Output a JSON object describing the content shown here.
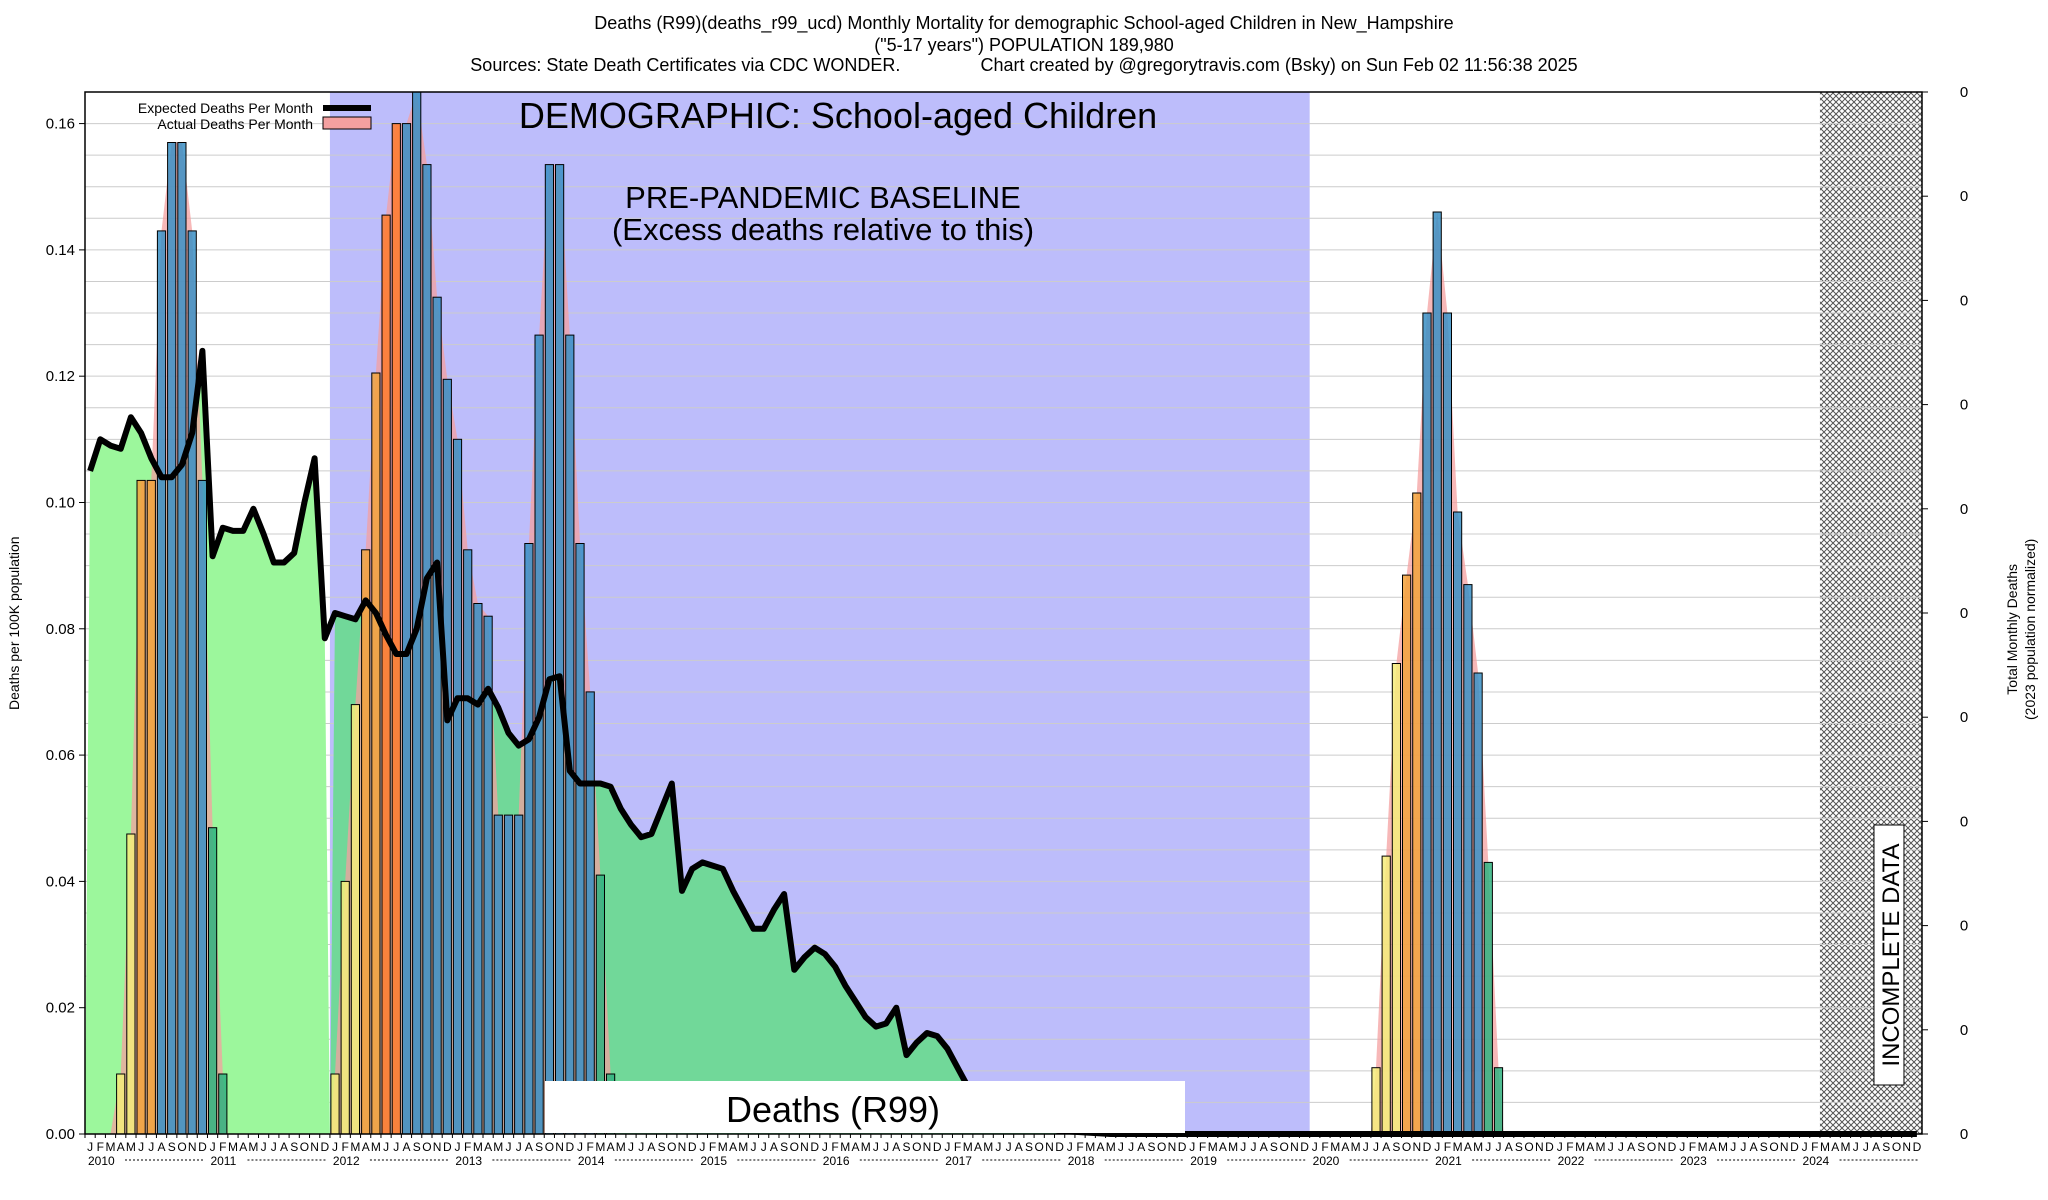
{
  "header": {
    "line1": "Deaths (R99)(deaths_r99_ucd) Monthly Mortality for demographic School-aged Children in New_Hampshire",
    "line2": "(\"5-17 years\") POPULATION 189,980",
    "line3": "Sources: State Death Certificates via CDC WONDER.                Chart created by @gregorytravis.com (Bsky) on Sun Feb 02 11:56:38 2025"
  },
  "chart_data": {
    "type": "bar",
    "ylabel": "Deaths per 100K population",
    "ylabel_right": [
      "Total Monthly Deaths",
      "(2023 population normalized)"
    ],
    "ylim": [
      0,
      0.165
    ],
    "yticks": [
      "0.00",
      "0.02",
      "0.04",
      "0.06",
      "0.08",
      "0.10",
      "0.12",
      "0.14",
      "0.16"
    ],
    "right_ticks": [
      "0",
      "0",
      "0",
      "0",
      "0",
      "0",
      "0",
      "0",
      "0",
      "0",
      "0"
    ],
    "legend": {
      "placement": "top-left",
      "expected": "Expected Deaths Per Month",
      "actual": "Actual Deaths Per Month"
    },
    "annotations": {
      "demographic": "DEMOGRAPHIC: School-aged Children",
      "baseline1": "PRE-PANDEMIC BASELINE",
      "baseline2": "(Excess deaths relative to this)",
      "deaths_box": "Deaths (R99)",
      "incomplete": "INCOMPLETE DATA"
    },
    "years": [
      "2010",
      "2011",
      "2012",
      "2013",
      "2014",
      "2015",
      "2016",
      "2017",
      "2018",
      "2019",
      "2020",
      "2021",
      "2022",
      "2023",
      "2024"
    ],
    "month_letters": [
      "J",
      "F",
      "M",
      "A",
      "M",
      "J",
      "J",
      "A",
      "S",
      "O",
      "N",
      "D"
    ],
    "baseline_start": "2012-01",
    "baseline_end": "2019-12",
    "incomplete_start": "2024-03",
    "actual_series": [
      {
        "start": "2010-01",
        "values": [
          0,
          0,
          0,
          0.0095,
          0.0475,
          0.1035,
          0.1035,
          0.143,
          0.157,
          0.157,
          0.143,
          0.1035,
          0.0485,
          0.0095
        ]
      },
      {
        "start": "2012-01",
        "values": [
          0.0095,
          0.04,
          0.068,
          0.0925,
          0.1205,
          0.1455,
          0.16,
          0.16,
          0.165,
          0.1535,
          0.1325,
          0.1195,
          0.11,
          0.0925,
          0.084,
          0.082,
          0.0505,
          0.0505,
          0.0505,
          0.0935,
          0.1265,
          0.1535,
          0.1535,
          0.1265,
          0.0935,
          0.07,
          0.041,
          0.0095
        ]
      },
      {
        "start": "2020-07",
        "values": [
          0.0105,
          0.044,
          0.0745,
          0.0885,
          0.1015,
          0.13,
          0.146,
          0.13,
          0.0985,
          0.087,
          0.073,
          0.043,
          0.0105
        ]
      }
    ],
    "expected_series": {
      "start": "2010-01",
      "values": [
        0.105,
        0.11,
        0.109,
        0.1085,
        0.1135,
        0.111,
        0.107,
        0.104,
        0.104,
        0.106,
        0.111,
        0.124,
        0.0915,
        0.096,
        0.0955,
        0.0955,
        0.099,
        0.095,
        0.0905,
        0.0905,
        0.092,
        0.1,
        0.107,
        0.0785,
        0.0825,
        0.082,
        0.0815,
        0.0845,
        0.0825,
        0.079,
        0.076,
        0.076,
        0.08,
        0.088,
        0.0905,
        0.0655,
        0.069,
        0.069,
        0.068,
        0.0705,
        0.0675,
        0.0635,
        0.0615,
        0.0625,
        0.066,
        0.072,
        0.0725,
        0.0575,
        0.0555,
        0.0555,
        0.0555,
        0.055,
        0.0515,
        0.049,
        0.047,
        0.0475,
        0.0515,
        0.0555,
        0.0385,
        0.042,
        0.043,
        0.0425,
        0.042,
        0.0385,
        0.0355,
        0.0325,
        0.0325,
        0.0355,
        0.038,
        0.026,
        0.028,
        0.0295,
        0.0285,
        0.0265,
        0.0235,
        0.021,
        0.0185,
        0.017,
        0.0175,
        0.02,
        0.0125,
        0.0145,
        0.016,
        0.0155,
        0.0135,
        0.0105,
        0.0075,
        0.0055,
        0.004,
        0.003,
        0.002,
        0.0015,
        0.0012,
        0.001,
        0.0008,
        0.0005,
        0.0004,
        0.0003,
        0.0002,
        0.0001,
        0,
        0,
        0,
        0,
        0,
        0,
        0,
        0,
        0,
        0,
        0,
        0,
        0,
        0,
        0,
        0,
        0,
        0,
        0,
        0,
        0,
        0,
        0,
        0,
        0,
        0,
        0,
        0,
        0,
        0,
        0,
        0,
        0,
        0,
        0,
        0,
        0,
        0,
        0,
        0,
        0,
        0,
        0,
        0,
        0,
        0,
        0,
        0,
        0,
        0,
        0,
        0,
        0,
        0,
        0,
        0,
        0,
        0,
        0,
        0,
        0,
        0,
        0,
        0,
        0,
        0,
        0,
        0,
        0,
        0,
        0,
        0,
        0,
        0,
        0,
        0,
        0,
        0,
        0,
        0
      ]
    },
    "colors": {
      "baseline_region": "#bdbdfb",
      "expected_fill_pre": "#9cf79c",
      "expected_fill_in": "#71d899",
      "expected_line": "#000000",
      "actual_band": "#f4a0a0",
      "bar_low": "#f4ec7a",
      "bar_mid": "#f2a23b",
      "bar_high": "#ff7a2a",
      "bar_blue": "#3a8fc4",
      "bar_green": "#2fb17f",
      "grid": "#cccccc"
    }
  }
}
